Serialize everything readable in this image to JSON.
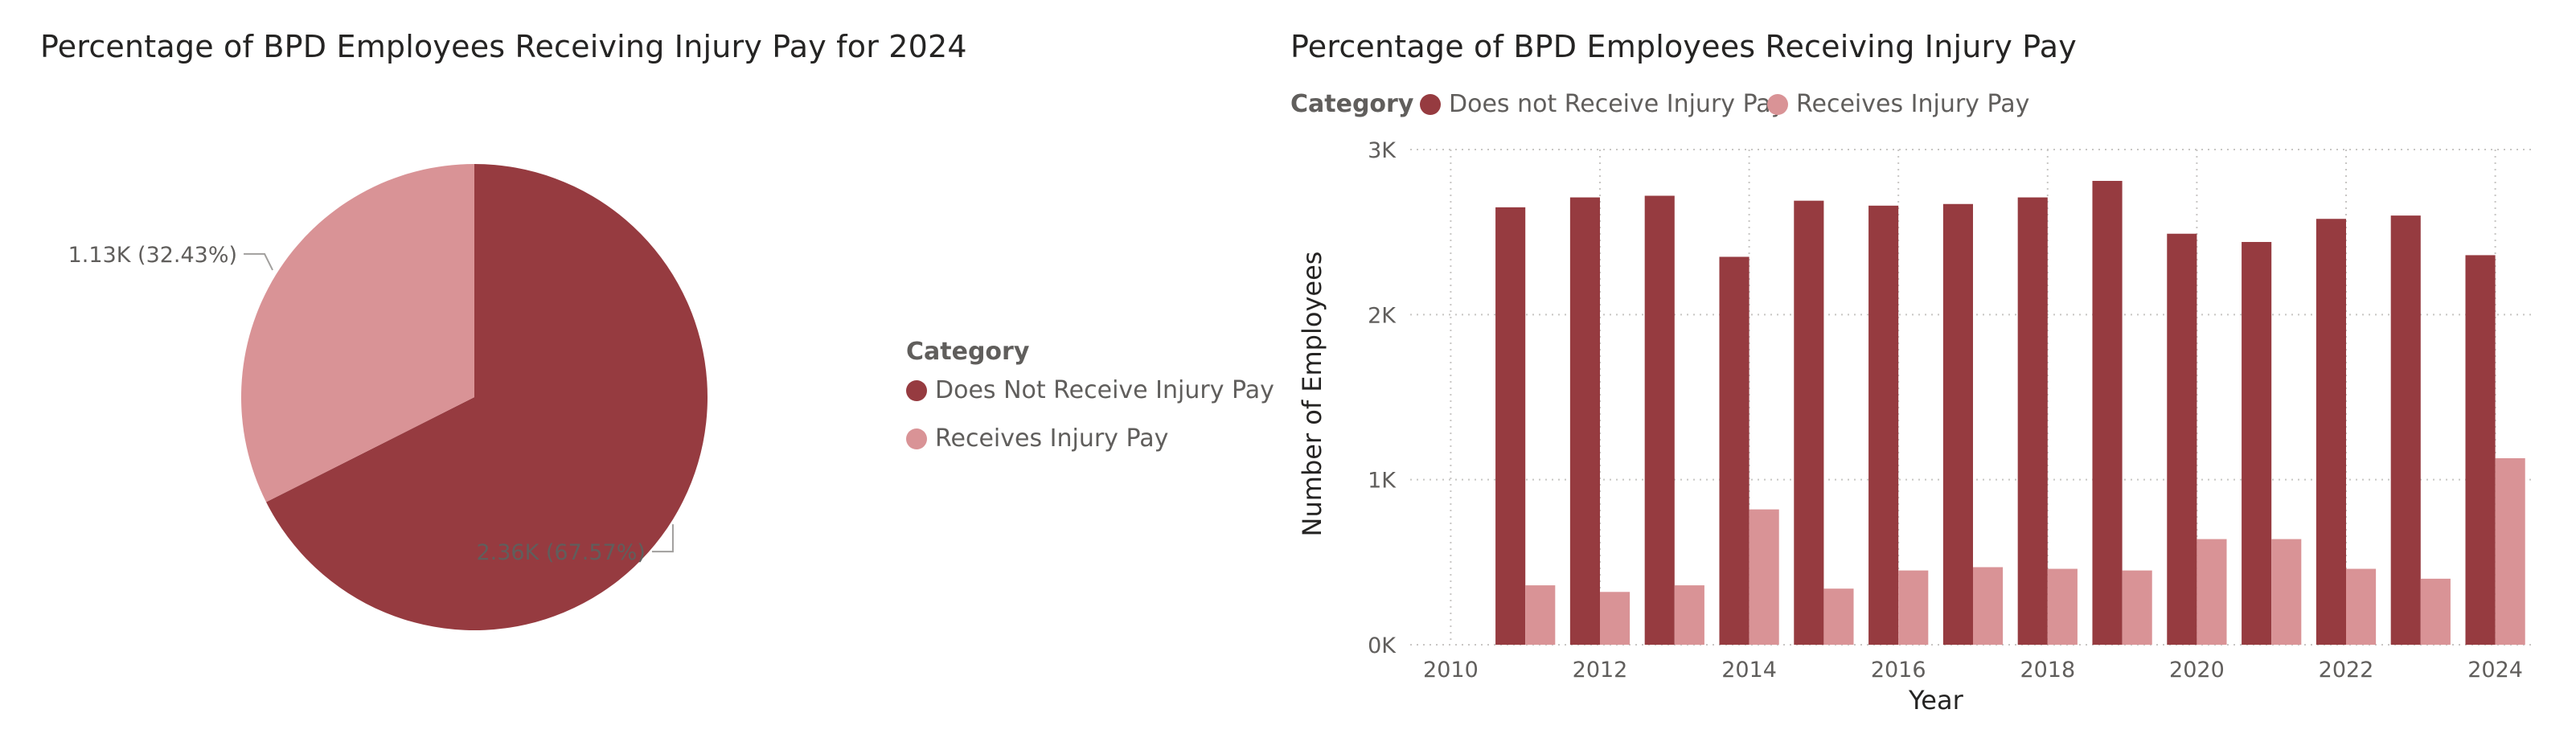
{
  "colors": {
    "does_not_receive": "#963b40",
    "receives": "#d99396",
    "gridline": "#c8c6c4",
    "label": "#605e5c"
  },
  "pie_panel": {
    "title": "Percentage of BPD Employees Receiving Injury Pay for 2024",
    "legend_title": "Category",
    "legend_items": [
      "Does Not Receive Injury Pay",
      "Receives Injury Pay"
    ]
  },
  "bar_panel": {
    "title": "Percentage of BPD Employees Receiving Injury Pay",
    "legend_title": "Category",
    "legend_items": [
      "Does not Receive Injury Pay",
      "Receives Injury Pay"
    ],
    "x_axis_title": "Year",
    "y_axis_title": "Number of Employees"
  },
  "chart_data": [
    {
      "type": "pie",
      "title": "Percentage of BPD Employees Receiving Injury Pay for 2024",
      "legend_placement": "right",
      "slices": [
        {
          "name": "Does Not Receive Injury Pay",
          "value": 2360,
          "percent": 67.57,
          "label": "2.36K (67.57%)"
        },
        {
          "name": "Receives Injury Pay",
          "value": 1130,
          "percent": 32.43,
          "label": "1.13K (32.43%)"
        }
      ]
    },
    {
      "type": "bar",
      "title": "Percentage of BPD Employees Receiving Injury Pay",
      "xlabel": "Year",
      "ylabel": "Number of Employees",
      "legend_placement": "top-left",
      "grid": true,
      "xlim": [
        2010,
        2024
      ],
      "xticks": [
        2010,
        2012,
        2014,
        2016,
        2018,
        2020,
        2022,
        2024
      ],
      "ylim": [
        0,
        3000
      ],
      "yticks": [
        0,
        1000,
        2000,
        3000
      ],
      "ytick_labels": [
        "0K",
        "1K",
        "2K",
        "3K"
      ],
      "x": [
        2011,
        2012,
        2013,
        2014,
        2015,
        2016,
        2017,
        2018,
        2019,
        2020,
        2021,
        2022,
        2023,
        2024
      ],
      "series": [
        {
          "name": "Does not Receive Injury Pay",
          "values": [
            2650,
            2710,
            2720,
            2350,
            2690,
            2660,
            2670,
            2710,
            2810,
            2490,
            2440,
            2580,
            2600,
            2360
          ]
        },
        {
          "name": "Receives Injury Pay",
          "values": [
            360,
            320,
            360,
            820,
            340,
            450,
            470,
            460,
            450,
            640,
            640,
            460,
            400,
            1130
          ]
        }
      ]
    }
  ]
}
